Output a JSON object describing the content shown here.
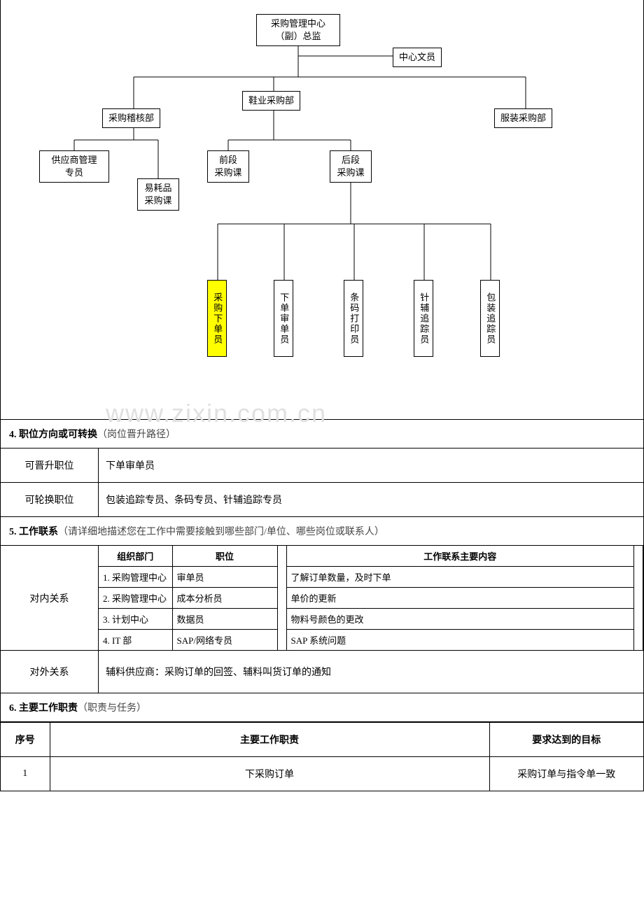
{
  "orgchart": {
    "nodes": {
      "root": "采购管理中心\n（副）总监",
      "clerk": "中心文员",
      "audit": "采购稽核部",
      "shoe": "鞋业采购部",
      "apparel": "服装采购部",
      "supplier": "供应商管理\n专员",
      "consumable": "易耗品\n采购课",
      "front": "前段\n采购课",
      "back": "后段\n采购课",
      "leaf1": "采购下单员",
      "leaf2": "下单审单员",
      "leaf3": "条码打印员",
      "leaf4": "针辅追踪员",
      "leaf5": "包装追踪员"
    },
    "highlight_color": "#ffff00",
    "line_color": "#000000"
  },
  "watermark": "www.zixin.com.cn",
  "section4": {
    "title_bold": "4. 职位方向或可转换",
    "title_light": "（岗位晋升路径）",
    "rows": [
      {
        "label": "可晋升职位",
        "value": "下单审单员"
      },
      {
        "label": "可轮换职位",
        "value": "包装追踪专员、条码专员、针辅追踪专员"
      }
    ]
  },
  "section5": {
    "title_bold": "5. 工作联系",
    "title_light": "（请详细地描述您在工作中需要接触到哪些部门/单位、哪些岗位或联系人）",
    "internal_label": "对内关系",
    "external_label": "对外关系",
    "headers": {
      "dept": "组织部门",
      "pos": "职位",
      "content": "工作联系主要内容"
    },
    "internal": [
      {
        "dept": "1. 采购管理中心",
        "pos": "审单员",
        "content": "了解订单数量，及时下单"
      },
      {
        "dept": "2. 采购管理中心",
        "pos": "成本分析员",
        "content": "单价的更新"
      },
      {
        "dept": "3. 计划中心",
        "pos": "数据员",
        "content": "物料号颜色的更改"
      },
      {
        "dept": "4. IT 部",
        "pos": "SAP/网络专员",
        "content": "SAP 系统问题"
      }
    ],
    "external": "辅料供应商：采购订单的回签、辅料叫货订单的通知"
  },
  "section6": {
    "title_bold": "6. 主要工作职责",
    "title_light": "（职责与任务）",
    "headers": {
      "no": "序号",
      "duty": "主要工作职责",
      "goal": "要求达到的目标"
    },
    "rows": [
      {
        "no": "1",
        "duty": "下采购订单",
        "goal": "采购订单与指令单一致"
      }
    ]
  }
}
